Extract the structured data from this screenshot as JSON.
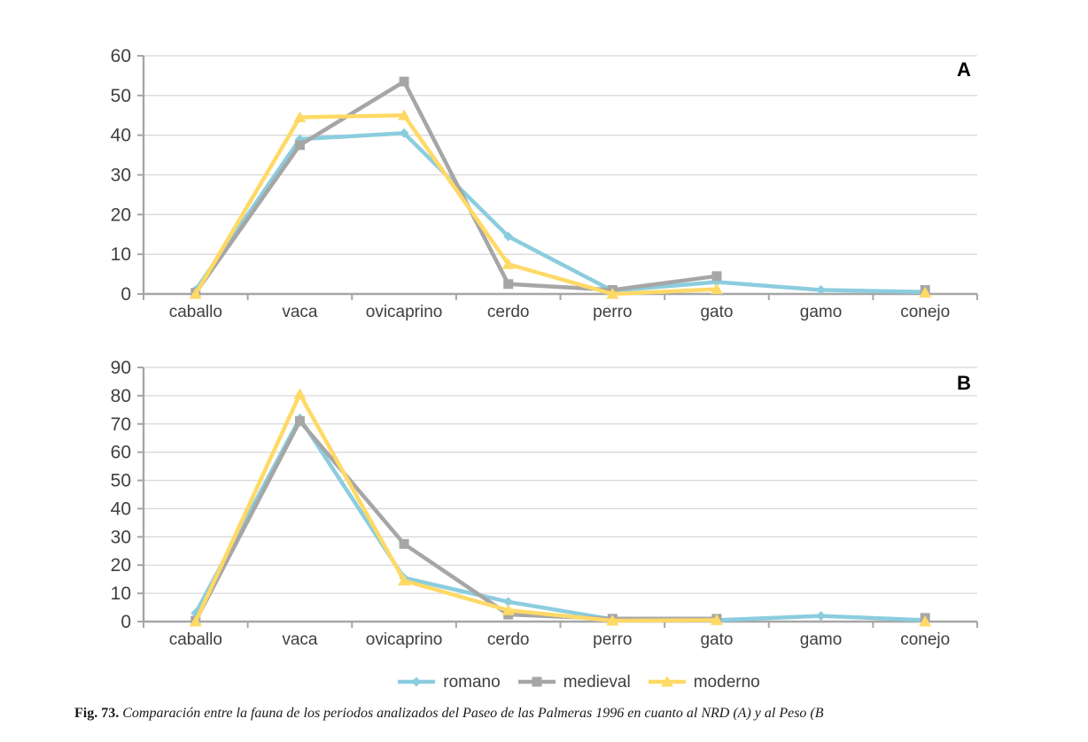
{
  "figure": {
    "caption_prefix": "Fig. 73.",
    "caption_text": " Comparación entre la fauna de los periodos analizados del Paseo de las Palmeras 1996 en cuanto al NRD (A) y al Peso (B"
  },
  "colors": {
    "romano": "#8BCDDE",
    "medieval": "#A6A6A6",
    "moderno": "#FFD966",
    "gridline": "#D9D9D9",
    "axis": "#A6A6A6",
    "tick_text": "#404040",
    "panel_label_text": "#000000"
  },
  "legend": {
    "position": "bottom-center",
    "items": [
      {
        "label": "romano",
        "marker": "diamond",
        "color": "#8BCDDE"
      },
      {
        "label": "medieval",
        "marker": "square",
        "color": "#A6A6A6"
      },
      {
        "label": "moderno",
        "marker": "triangle",
        "color": "#FFD966"
      }
    ]
  },
  "chart_data": [
    {
      "type": "line",
      "panel_label": "A",
      "categories": [
        "caballo",
        "vaca",
        "ovicaprino",
        "cerdo",
        "perro",
        "gato",
        "gamo",
        "conejo"
      ],
      "series": [
        {
          "name": "romano",
          "marker": "diamond",
          "color": "#8BCDDE",
          "values": [
            1,
            39,
            40.5,
            14.5,
            0.8,
            3,
            1,
            0.5
          ]
        },
        {
          "name": "medieval",
          "marker": "square",
          "color": "#A6A6A6",
          "values": [
            0.3,
            37.5,
            53.5,
            2.5,
            1,
            4.5,
            null,
            1
          ]
        },
        {
          "name": "moderno",
          "marker": "triangle",
          "color": "#FFD966",
          "values": [
            0,
            44.5,
            45,
            7.5,
            0,
            1.2,
            null,
            0.3
          ]
        }
      ],
      "ylim": [
        0,
        60
      ],
      "ytick_step": 10,
      "grid": true,
      "legend_position": "shared-bottom"
    },
    {
      "type": "line",
      "panel_label": "B",
      "categories": [
        "caballo",
        "vaca",
        "ovicaprino",
        "cerdo",
        "perro",
        "gato",
        "gamo",
        "conejo"
      ],
      "series": [
        {
          "name": "romano",
          "marker": "diamond",
          "color": "#8BCDDE",
          "values": [
            3,
            72,
            15.5,
            7,
            0.8,
            0.5,
            2,
            0.5
          ]
        },
        {
          "name": "medieval",
          "marker": "square",
          "color": "#A6A6A6",
          "values": [
            0.3,
            71,
            27.5,
            2.5,
            1,
            1,
            null,
            1.3
          ]
        },
        {
          "name": "moderno",
          "marker": "triangle",
          "color": "#FFD966",
          "values": [
            0,
            80.5,
            14.5,
            4,
            0.3,
            0.5,
            null,
            0
          ]
        }
      ],
      "ylim": [
        0,
        90
      ],
      "ytick_step": 10,
      "grid": true,
      "legend_position": "shared-bottom"
    }
  ]
}
